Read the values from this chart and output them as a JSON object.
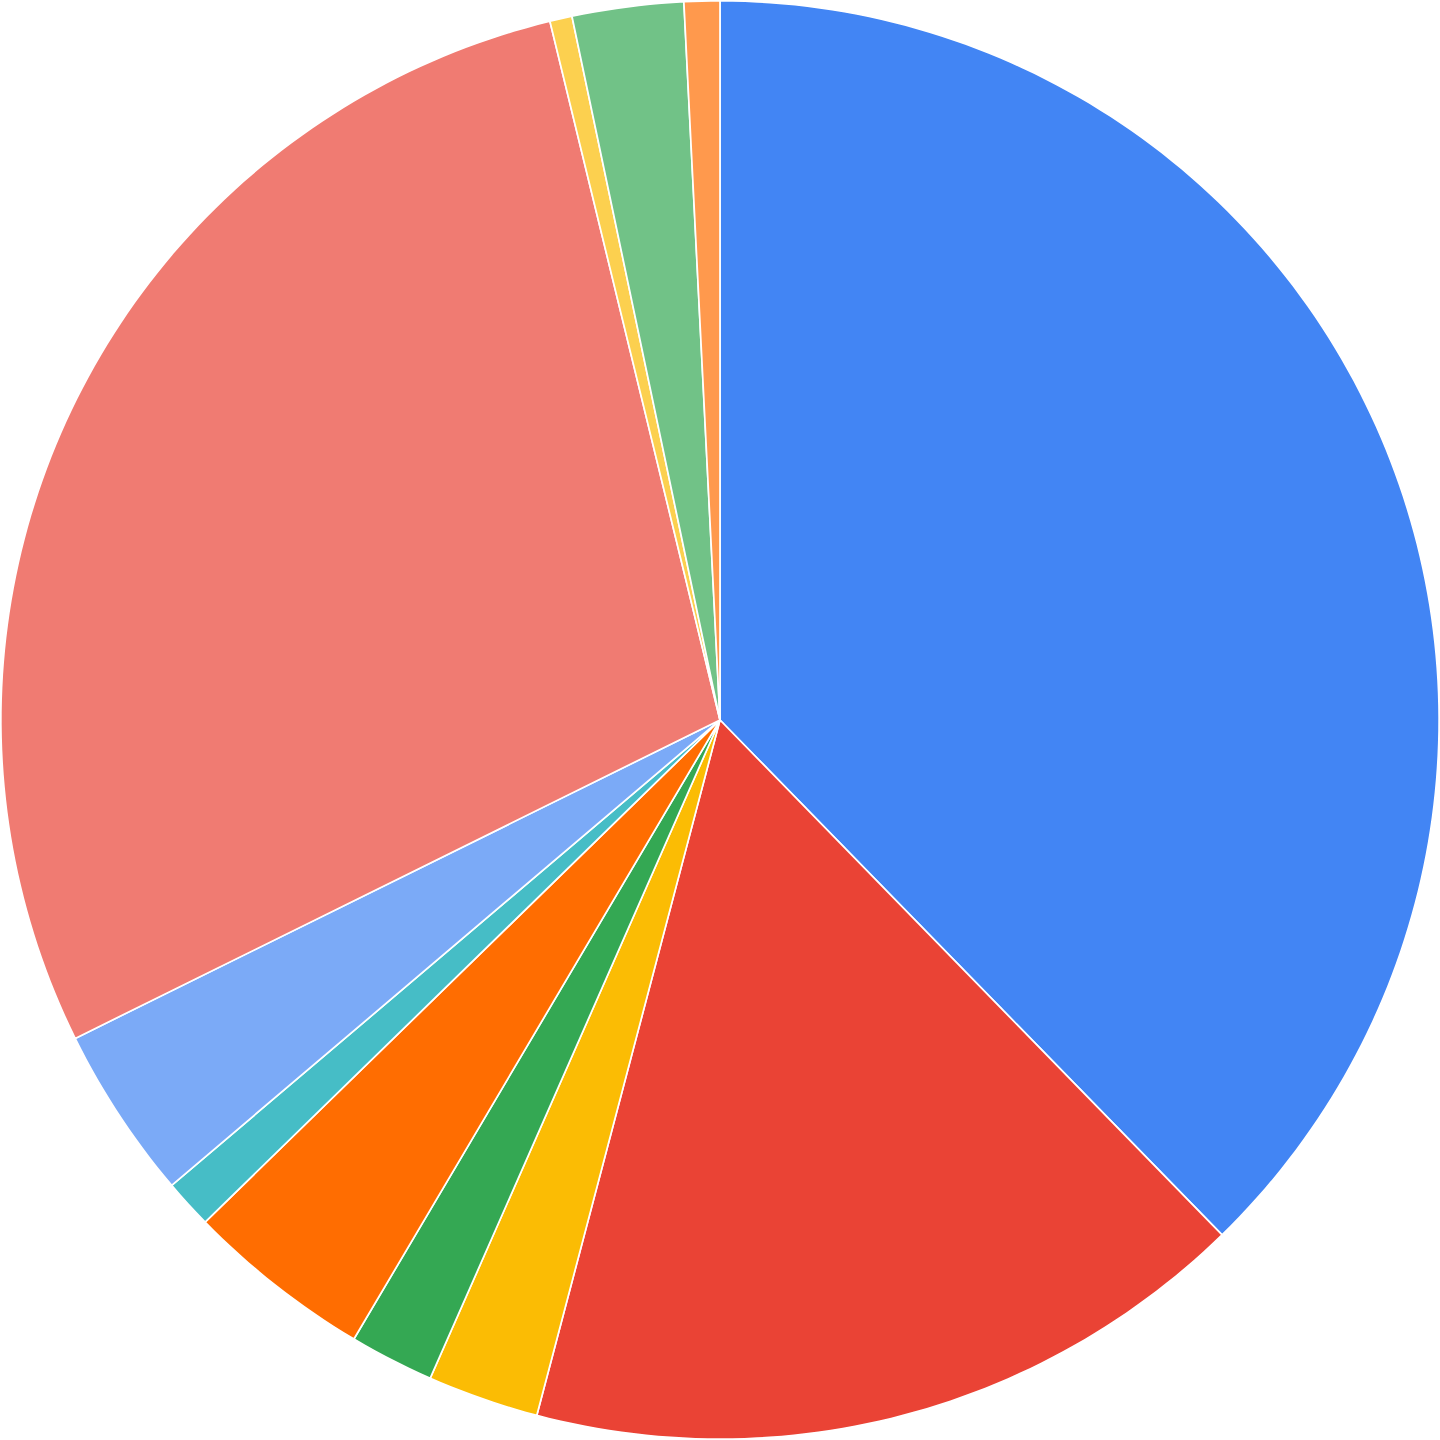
{
  "chart_data": {
    "type": "pie",
    "categories": [
      null,
      null,
      null,
      null,
      null,
      null,
      null,
      null,
      null,
      null,
      null
    ],
    "values": [
      37.7,
      16.4,
      2.5,
      1.9,
      4.2,
      1.1,
      3.9,
      28.5,
      0.5,
      2.5,
      0.8
    ],
    "colors": [
      "#4285f4",
      "#ea4335",
      "#fbbc04",
      "#34a853",
      "#ff6d01",
      "#46bdc6",
      "#7baaf7",
      "#f07b72",
      "#fcd04f",
      "#71c287",
      "#ff994d"
    ]
  }
}
